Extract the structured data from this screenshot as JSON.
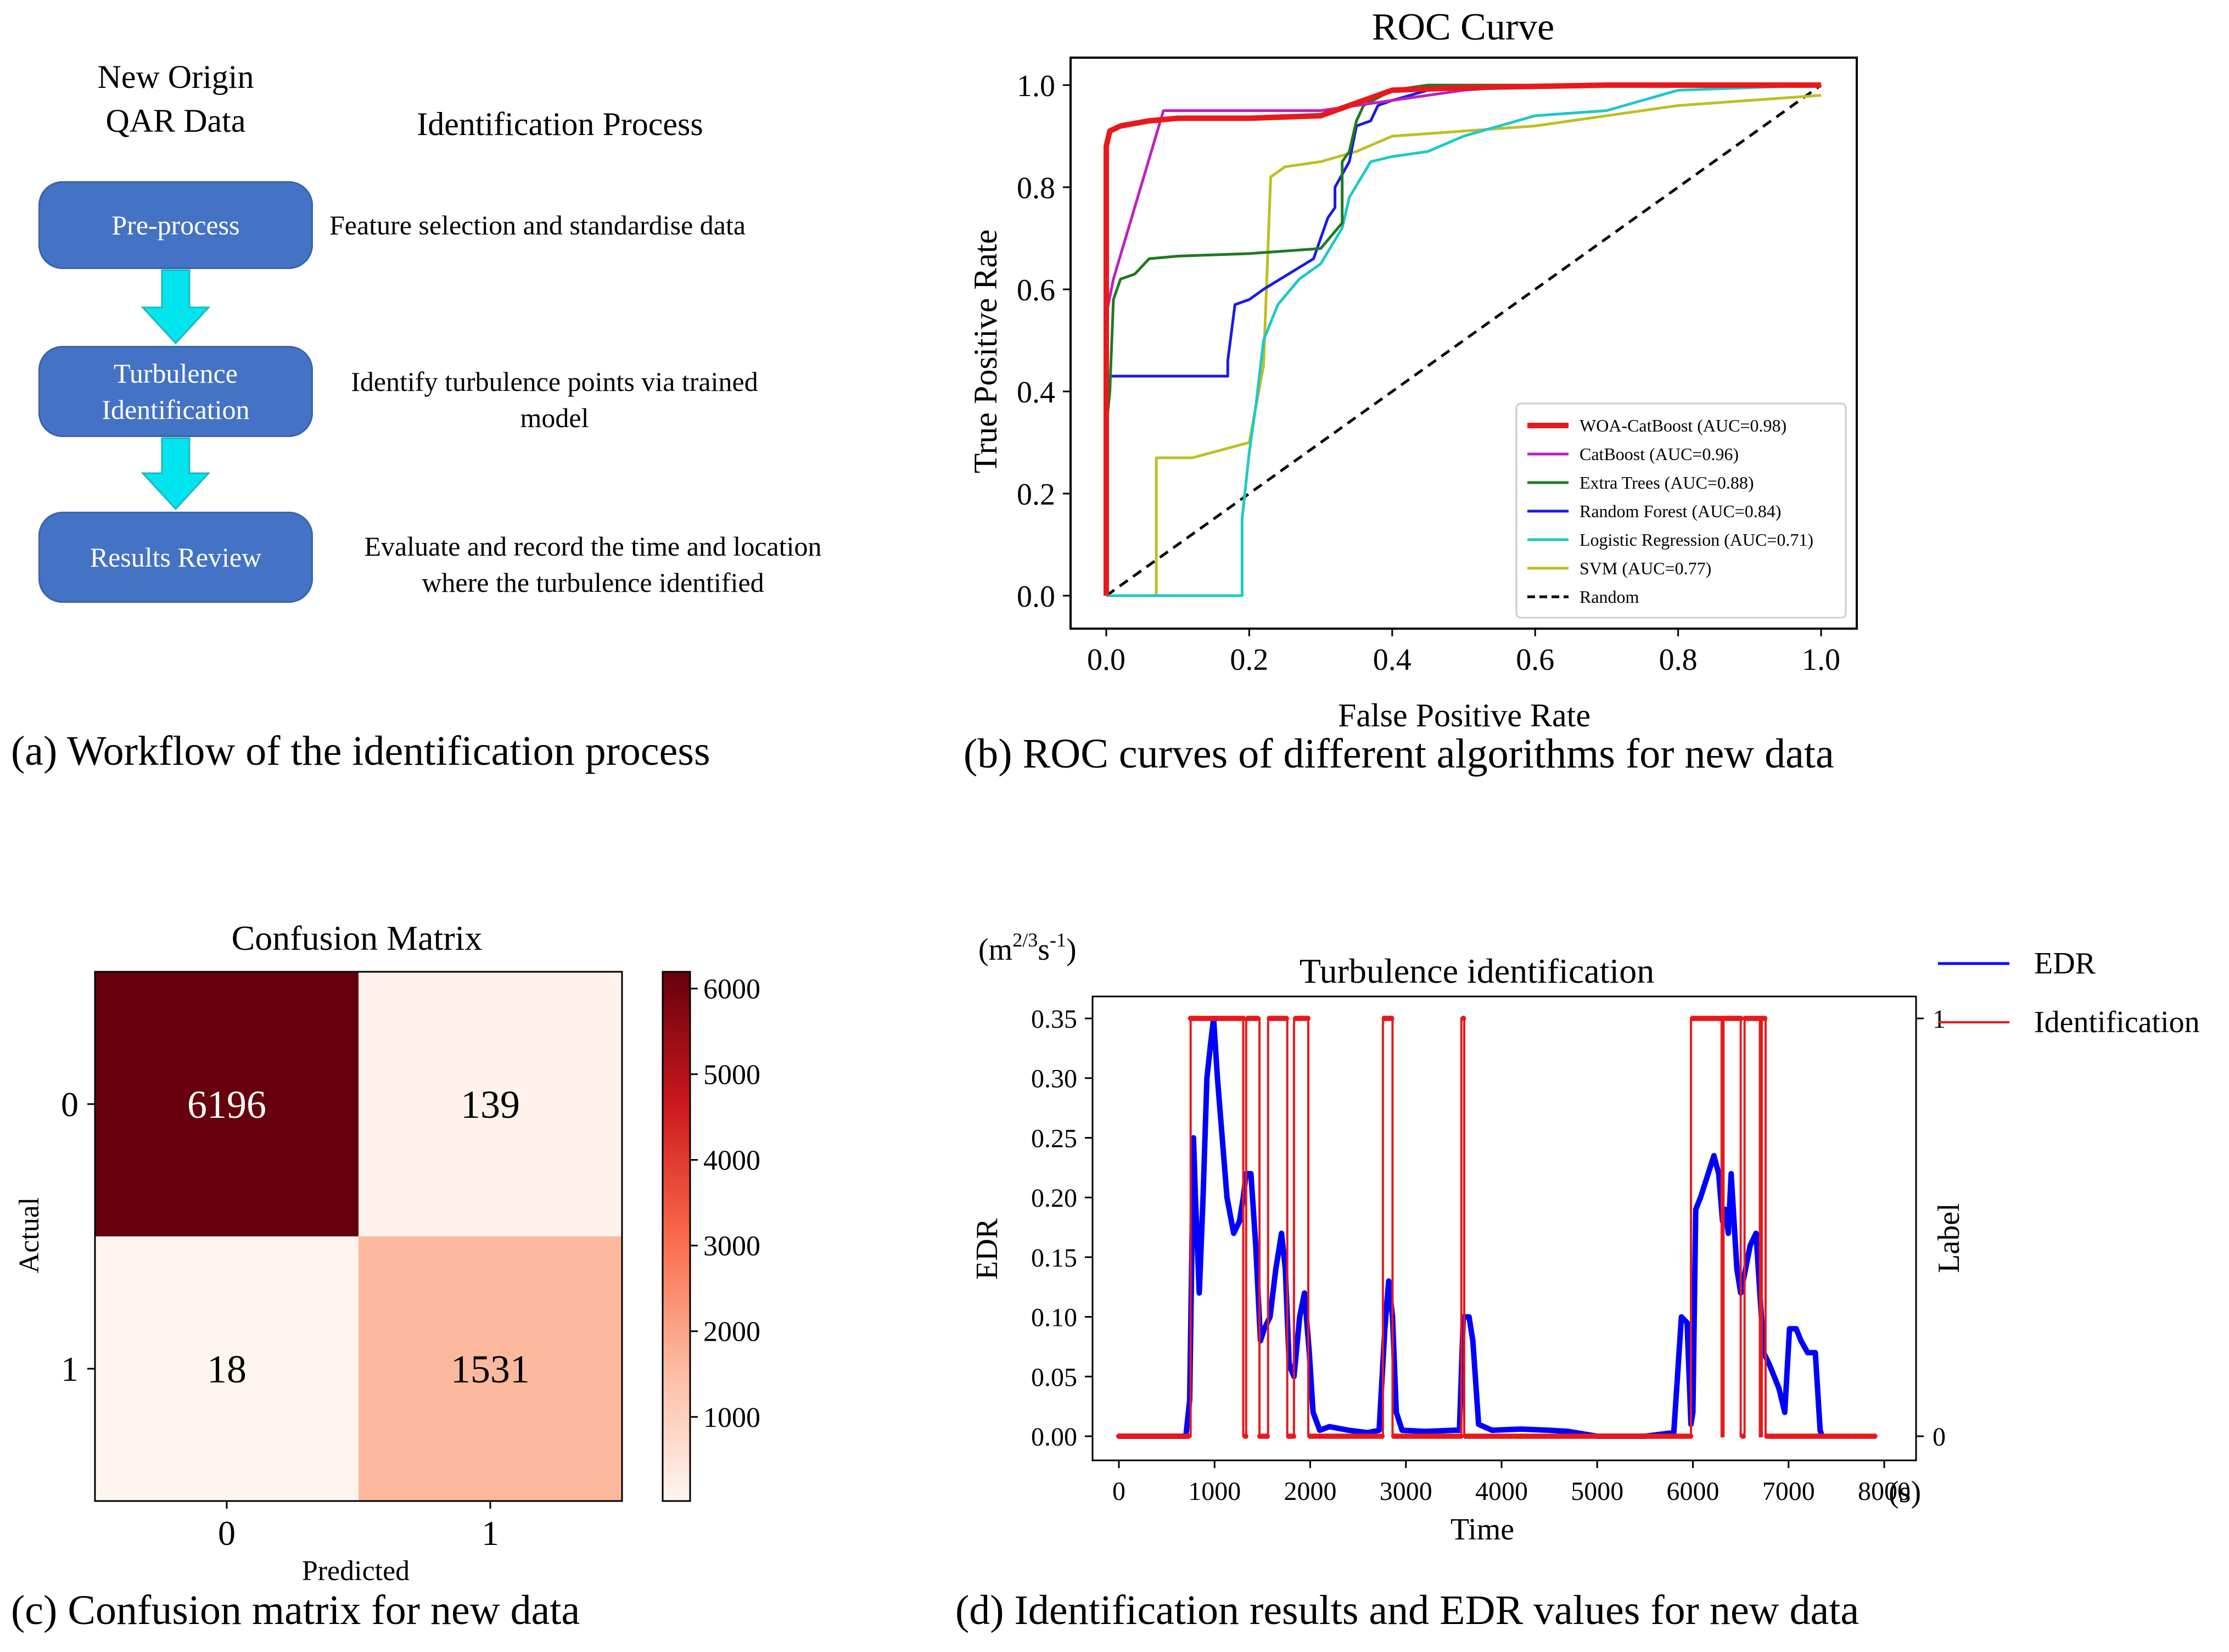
{
  "workflow": {
    "source_line1": "New Origin",
    "source_line2": "QAR Data",
    "heading": "Identification Process",
    "steps": [
      {
        "line1": "Pre-process",
        "line2": "",
        "desc1": "Feature selection and standardise data",
        "desc2": ""
      },
      {
        "line1": "Turbulence",
        "line2": "Identification",
        "desc1": "Identify turbulence points via trained",
        "desc2": "model"
      },
      {
        "line1": "Results Review",
        "line2": "",
        "desc1": "Evaluate and record the time and location",
        "desc2": "where the turbulence identified"
      }
    ],
    "colors": {
      "box": "#4472c4",
      "arrow": "#00e5ee"
    },
    "caption": "(a) Workflow of the identification process"
  },
  "roc": {
    "caption": "(b) ROC curves of different algorithms for new data",
    "chart_data": {
      "type": "line",
      "title": "ROC Curve",
      "xlabel": "False Positive Rate",
      "ylabel": "True Positive Rate",
      "xlim": [
        0.0,
        1.0
      ],
      "ylim": [
        0.0,
        1.0
      ],
      "xticks": [
        "0.0",
        "0.2",
        "0.4",
        "0.6",
        "0.8",
        "1.0"
      ],
      "yticks": [
        "0.0",
        "0.2",
        "0.4",
        "0.6",
        "0.8",
        "1.0"
      ],
      "legend_position": "lower-right",
      "series": [
        {
          "name": "WOA-CatBoost (AUC=0.98)",
          "color": "#e8191c",
          "width": 10,
          "points": [
            [
              0,
              0
            ],
            [
              0,
              0.88
            ],
            [
              0.005,
              0.91
            ],
            [
              0.02,
              0.92
            ],
            [
              0.06,
              0.93
            ],
            [
              0.1,
              0.935
            ],
            [
              0.2,
              0.935
            ],
            [
              0.3,
              0.94
            ],
            [
              0.32,
              0.95
            ],
            [
              0.4,
              0.99
            ],
            [
              0.5,
              0.995
            ],
            [
              0.7,
              1.0
            ],
            [
              1,
              1
            ]
          ]
        },
        {
          "name": "CatBoost (AUC=0.96)",
          "color": "#bf1fbf",
          "width": 5,
          "points": [
            [
              0,
              0
            ],
            [
              0,
              0.55
            ],
            [
              0.01,
              0.62
            ],
            [
              0.08,
              0.95
            ],
            [
              0.3,
              0.95
            ],
            [
              0.4,
              0.97
            ],
            [
              0.5,
              0.99
            ],
            [
              0.6,
              1.0
            ],
            [
              1,
              1
            ]
          ]
        },
        {
          "name": "Extra Trees (AUC=0.88)",
          "color": "#1e7b1e",
          "width": 5,
          "points": [
            [
              0,
              0
            ],
            [
              0,
              0.33
            ],
            [
              0.005,
              0.4
            ],
            [
              0.01,
              0.58
            ],
            [
              0.02,
              0.62
            ],
            [
              0.04,
              0.63
            ],
            [
              0.06,
              0.66
            ],
            [
              0.1,
              0.665
            ],
            [
              0.2,
              0.67
            ],
            [
              0.3,
              0.68
            ],
            [
              0.33,
              0.73
            ],
            [
              0.33,
              0.85
            ],
            [
              0.34,
              0.87
            ],
            [
              0.35,
              0.93
            ],
            [
              0.36,
              0.96
            ],
            [
              0.4,
              0.99
            ],
            [
              0.45,
              1.0
            ],
            [
              1,
              1
            ]
          ]
        },
        {
          "name": "Random Forest (AUC=0.84)",
          "color": "#1a1ae8",
          "width": 5,
          "points": [
            [
              0,
              0
            ],
            [
              0,
              0.43
            ],
            [
              0.17,
              0.43
            ],
            [
              0.17,
              0.46
            ],
            [
              0.18,
              0.57
            ],
            [
              0.2,
              0.58
            ],
            [
              0.22,
              0.6
            ],
            [
              0.29,
              0.66
            ],
            [
              0.31,
              0.74
            ],
            [
              0.32,
              0.76
            ],
            [
              0.32,
              0.8
            ],
            [
              0.34,
              0.85
            ],
            [
              0.35,
              0.92
            ],
            [
              0.37,
              0.93
            ],
            [
              0.38,
              0.96
            ],
            [
              0.4,
              0.97
            ],
            [
              0.45,
              0.99
            ],
            [
              0.6,
              1.0
            ],
            [
              1,
              1
            ]
          ]
        },
        {
          "name": "Logistic Regression (AUC=0.71)",
          "color": "#1ec8c8",
          "width": 5,
          "points": [
            [
              0,
              0
            ],
            [
              0.19,
              0
            ],
            [
              0.19,
              0.15
            ],
            [
              0.2,
              0.28
            ],
            [
              0.21,
              0.38
            ],
            [
              0.22,
              0.5
            ],
            [
              0.24,
              0.57
            ],
            [
              0.27,
              0.62
            ],
            [
              0.3,
              0.65
            ],
            [
              0.33,
              0.72
            ],
            [
              0.34,
              0.78
            ],
            [
              0.37,
              0.85
            ],
            [
              0.4,
              0.86
            ],
            [
              0.45,
              0.87
            ],
            [
              0.5,
              0.9
            ],
            [
              0.55,
              0.92
            ],
            [
              0.6,
              0.94
            ],
            [
              0.7,
              0.95
            ],
            [
              0.75,
              0.97
            ],
            [
              0.8,
              0.99
            ],
            [
              1,
              1
            ]
          ]
        },
        {
          "name": "SVM (AUC=0.77)",
          "color": "#bfbf20",
          "width": 5,
          "points": [
            [
              0,
              0
            ],
            [
              0.07,
              0
            ],
            [
              0.07,
              0.27
            ],
            [
              0.12,
              0.27
            ],
            [
              0.2,
              0.3
            ],
            [
              0.22,
              0.45
            ],
            [
              0.23,
              0.82
            ],
            [
              0.25,
              0.84
            ],
            [
              0.3,
              0.85
            ],
            [
              0.35,
              0.87
            ],
            [
              0.4,
              0.9
            ],
            [
              0.5,
              0.91
            ],
            [
              0.6,
              0.92
            ],
            [
              0.7,
              0.94
            ],
            [
              0.8,
              0.96
            ],
            [
              0.9,
              0.97
            ],
            [
              1,
              0.98
            ]
          ]
        },
        {
          "name": "Random",
          "color": "#000000",
          "width": 5,
          "dash": true,
          "points": [
            [
              0,
              0
            ],
            [
              1,
              1
            ]
          ]
        }
      ]
    }
  },
  "confusion": {
    "caption": "(c) Confusion matrix for  new data",
    "chart_data": {
      "type": "heatmap",
      "title": "Confusion Matrix",
      "xlabel": "Predicted",
      "ylabel": "Actual",
      "row_labels": [
        "0",
        "1"
      ],
      "col_labels": [
        "0",
        "1"
      ],
      "values": [
        [
          6196,
          139
        ],
        [
          18,
          1531
        ]
      ],
      "cell_colors": [
        [
          "#67000d",
          "#fff2ec"
        ],
        [
          "#fff5f0",
          "#fcb89c"
        ]
      ],
      "cell_text_colors": [
        [
          "#ffffff",
          "#000000"
        ],
        [
          "#000000",
          "#000000"
        ]
      ],
      "colorbar_ticks": [
        1000,
        2000,
        3000,
        4000,
        5000,
        6000
      ],
      "colorbar_range": [
        18,
        6196
      ]
    }
  },
  "edr": {
    "caption": "(d) Identification results and EDR values for new data",
    "chart_data": {
      "type": "line",
      "title": "Turbulence identification",
      "xlabel": "Time",
      "ylabel": "EDR",
      "y2label": "Label",
      "y_unit_top": "(m2/3s-1)",
      "x_unit_right": "(s)",
      "xlim": [
        0,
        8000
      ],
      "ylim": [
        0.0,
        0.35
      ],
      "xticks": [
        "0",
        "1000",
        "2000",
        "3000",
        "4000",
        "5000",
        "6000",
        "7000",
        "8000"
      ],
      "yticks": [
        "0.00",
        "0.05",
        "0.10",
        "0.15",
        "0.20",
        "0.25",
        "0.30",
        "0.35"
      ],
      "y2ticks": [
        "0",
        "1"
      ],
      "legend_position": "outside-right",
      "series": [
        {
          "name": "EDR",
          "color": "#0000ff",
          "points": [
            [
              0,
              0
            ],
            [
              700,
              0
            ],
            [
              740,
              0.03
            ],
            [
              760,
              0.14
            ],
            [
              780,
              0.25
            ],
            [
              800,
              0.2
            ],
            [
              840,
              0.12
            ],
            [
              880,
              0.2
            ],
            [
              920,
              0.3
            ],
            [
              960,
              0.33
            ],
            [
              990,
              0.35
            ],
            [
              1030,
              0.3
            ],
            [
              1080,
              0.25
            ],
            [
              1130,
              0.2
            ],
            [
              1200,
              0.17
            ],
            [
              1260,
              0.18
            ],
            [
              1300,
              0.2
            ],
            [
              1330,
              0.22
            ],
            [
              1380,
              0.22
            ],
            [
              1430,
              0.16
            ],
            [
              1480,
              0.08
            ],
            [
              1520,
              0.09
            ],
            [
              1580,
              0.1
            ],
            [
              1640,
              0.14
            ],
            [
              1700,
              0.17
            ],
            [
              1740,
              0.14
            ],
            [
              1780,
              0.06
            ],
            [
              1830,
              0.05
            ],
            [
              1890,
              0.1
            ],
            [
              1940,
              0.12
            ],
            [
              1990,
              0.07
            ],
            [
              2030,
              0.02
            ],
            [
              2100,
              0.005
            ],
            [
              2200,
              0.008
            ],
            [
              2400,
              0.005
            ],
            [
              2600,
              0.003
            ],
            [
              2720,
              0.005
            ],
            [
              2780,
              0.09
            ],
            [
              2820,
              0.13
            ],
            [
              2860,
              0.1
            ],
            [
              2900,
              0.02
            ],
            [
              2960,
              0.005
            ],
            [
              3200,
              0.004
            ],
            [
              3500,
              0.005
            ],
            [
              3560,
              0.005
            ],
            [
              3600,
              0.1
            ],
            [
              3660,
              0.1
            ],
            [
              3700,
              0.08
            ],
            [
              3760,
              0.01
            ],
            [
              3900,
              0.005
            ],
            [
              4200,
              0.006
            ],
            [
              4500,
              0.005
            ],
            [
              4700,
              0.004
            ],
            [
              5000,
              0
            ],
            [
              5500,
              0
            ],
            [
              5800,
              0.003
            ],
            [
              5880,
              0.1
            ],
            [
              5940,
              0.095
            ],
            [
              5980,
              0.01
            ],
            [
              6000,
              0.02
            ],
            [
              6030,
              0.19
            ],
            [
              6080,
              0.2
            ],
            [
              6160,
              0.22
            ],
            [
              6220,
              0.235
            ],
            [
              6270,
              0.22
            ],
            [
              6310,
              0.18
            ],
            [
              6340,
              0.19
            ],
            [
              6370,
              0.17
            ],
            [
              6400,
              0.22
            ],
            [
              6430,
              0.18
            ],
            [
              6460,
              0.14
            ],
            [
              6500,
              0.12
            ],
            [
              6550,
              0.14
            ],
            [
              6600,
              0.16
            ],
            [
              6660,
              0.17
            ],
            [
              6700,
              0.12
            ],
            [
              6740,
              0.07
            ],
            [
              6800,
              0.06
            ],
            [
              6900,
              0.04
            ],
            [
              6960,
              0.02
            ],
            [
              7010,
              0.09
            ],
            [
              7080,
              0.09
            ],
            [
              7130,
              0.08
            ],
            [
              7200,
              0.07
            ],
            [
              7280,
              0.07
            ],
            [
              7330,
              0.005
            ],
            [
              7350,
              0
            ]
          ]
        },
        {
          "name": "Identification",
          "color": "#e8191c",
          "segments": [
            [
              750,
              1300
            ],
            [
              1330,
              1470
            ],
            [
              1560,
              1760
            ],
            [
              1830,
              1980
            ],
            [
              2760,
              2860
            ],
            [
              3580,
              3610
            ],
            [
              5980,
              6300
            ],
            [
              6320,
              6500
            ],
            [
              6540,
              6700
            ],
            [
              6720,
              6760
            ]
          ]
        }
      ]
    }
  }
}
